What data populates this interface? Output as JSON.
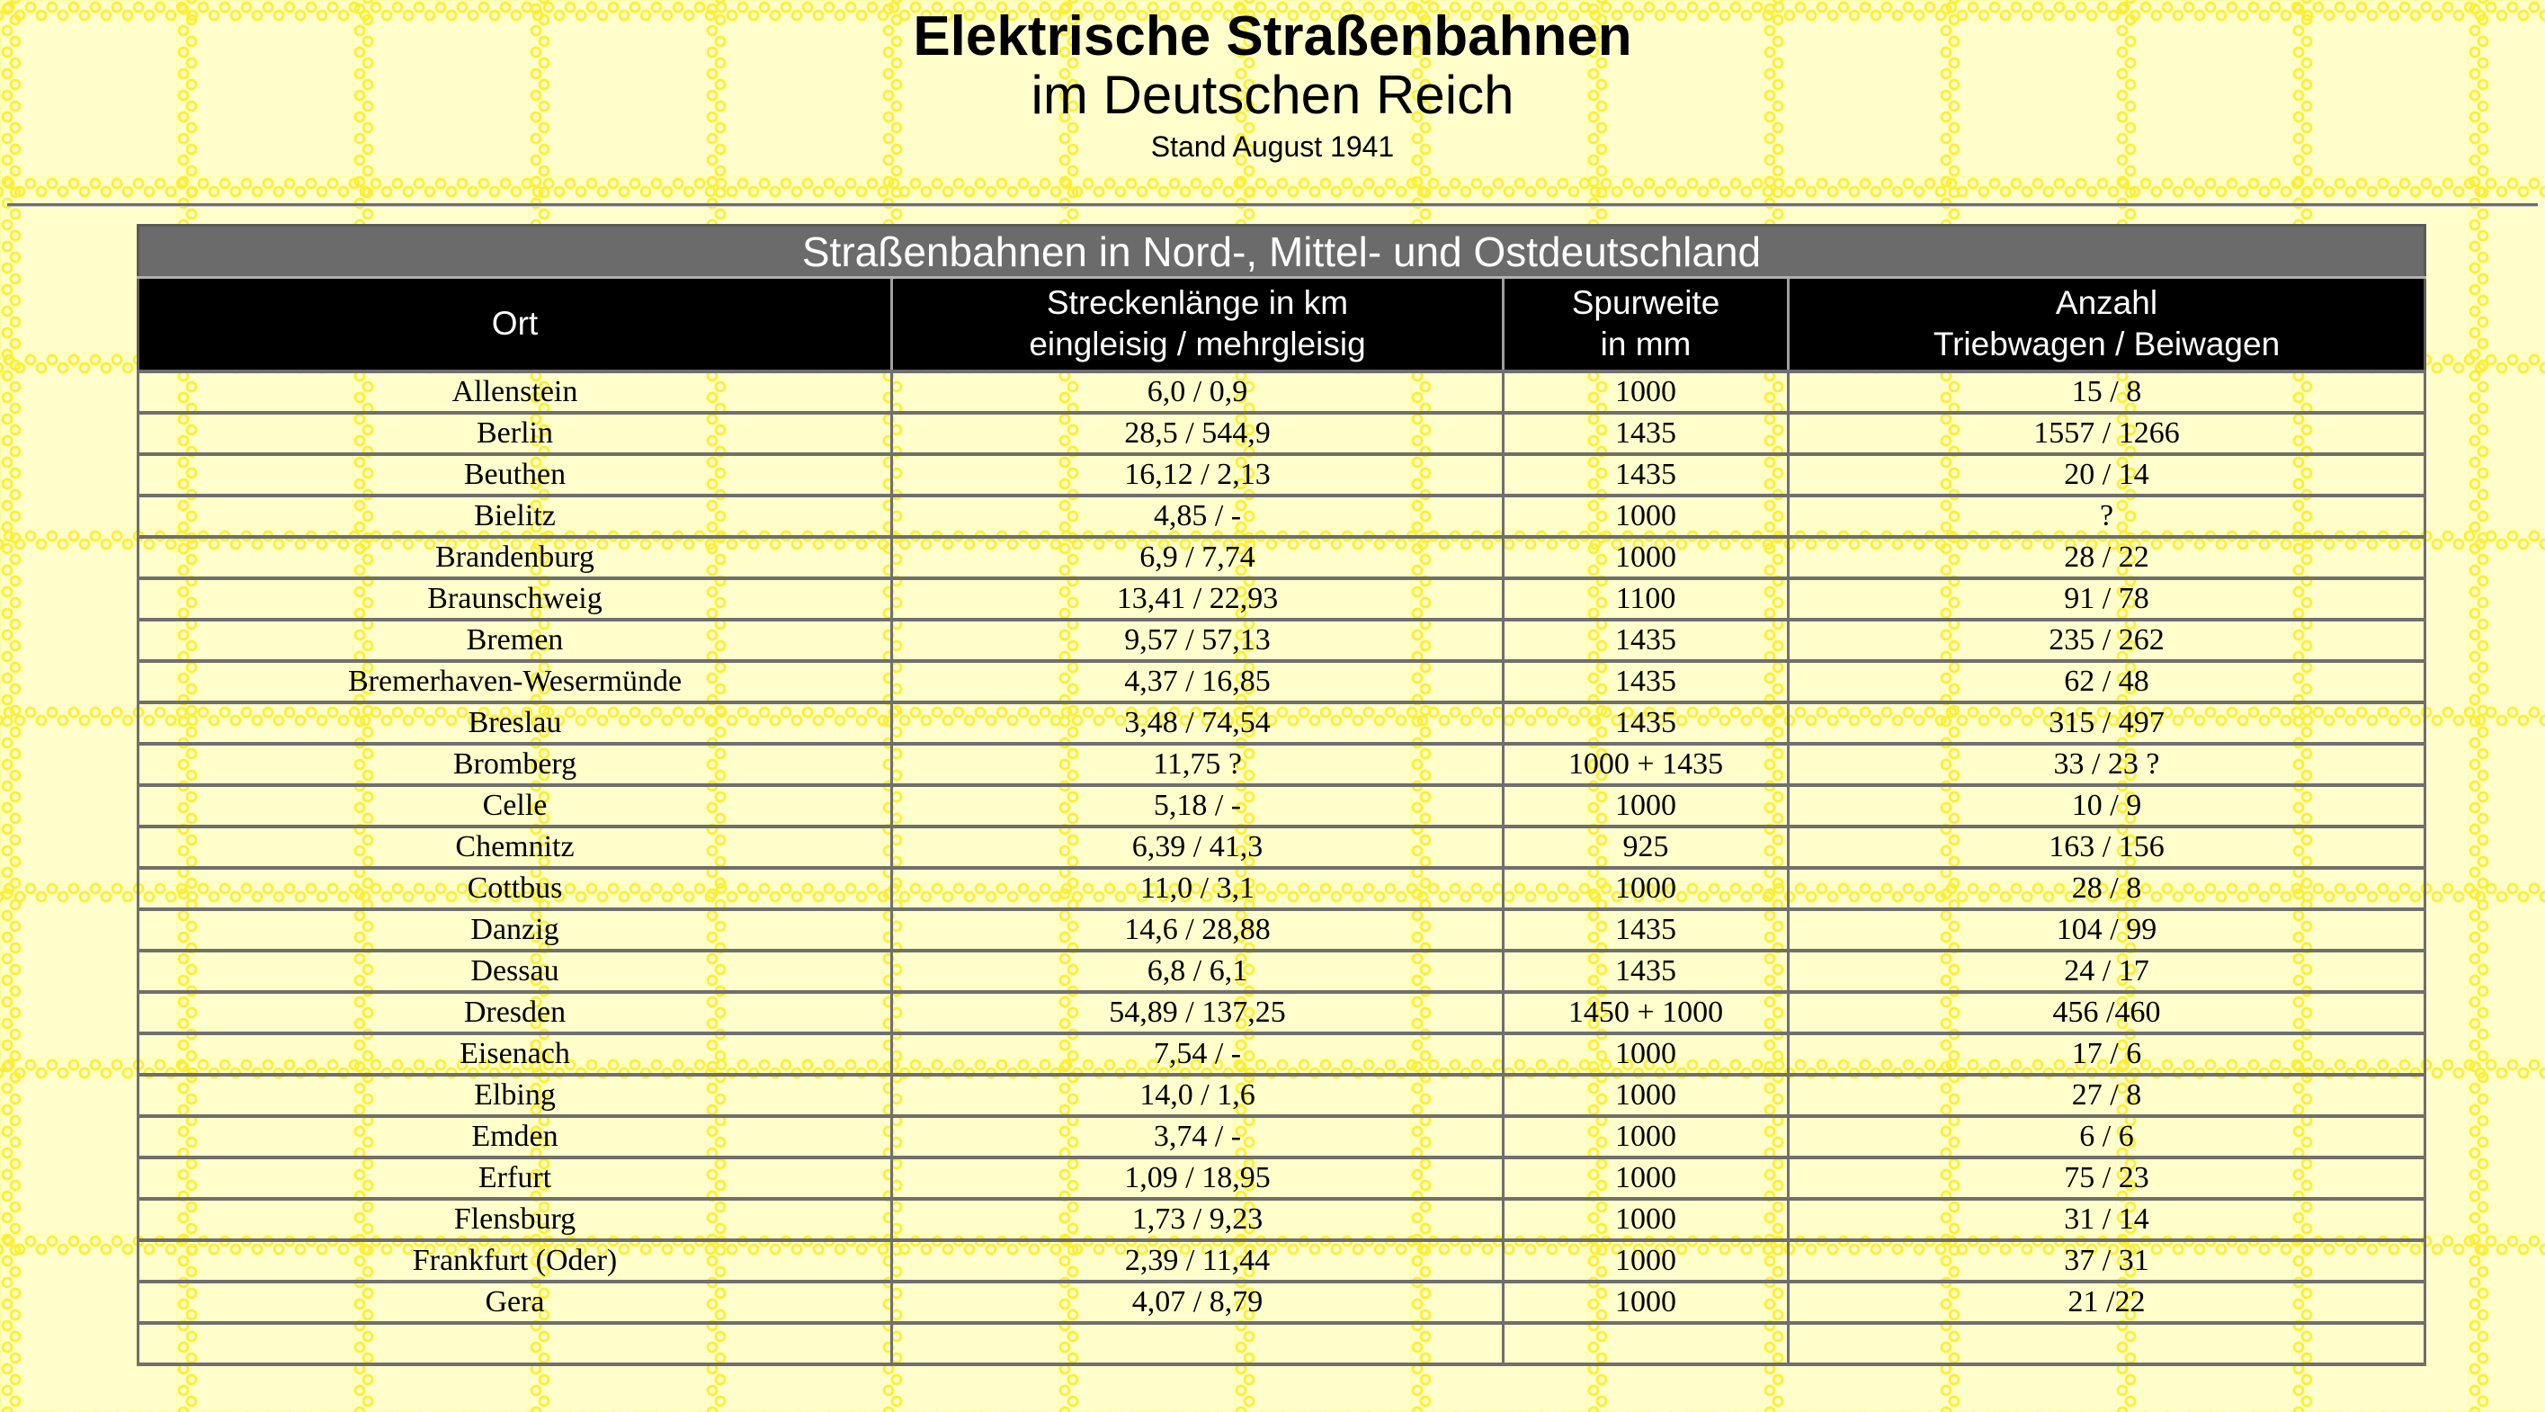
{
  "page": {
    "title_line1": "Elektrische Straßenbahnen",
    "title_line2": "im Deutschen Reich",
    "title_line3": "Stand August 1941"
  },
  "table": {
    "band_title": "Straßenbahnen in Nord-, Mittel- und Ostdeutschland",
    "columns": [
      {
        "line1": "Ort",
        "line2": ""
      },
      {
        "line1": "Streckenlänge in km",
        "line2": "eingleisig / mehrgleisig"
      },
      {
        "line1": "Spurweite",
        "line2": "in mm"
      },
      {
        "line1": "Anzahl",
        "line2": "Triebwagen / Beiwagen"
      }
    ],
    "rows": [
      [
        "Allenstein",
        "6,0 / 0,9",
        "1000",
        "15 / 8"
      ],
      [
        "Berlin",
        "28,5 / 544,9",
        "1435",
        "1557 / 1266"
      ],
      [
        "Beuthen",
        "16,12 / 2,13",
        "1435",
        "20 / 14"
      ],
      [
        "Bielitz",
        "4,85 / -",
        "1000",
        "?"
      ],
      [
        "Brandenburg",
        "6,9 / 7,74",
        "1000",
        "28 / 22"
      ],
      [
        "Braunschweig",
        "13,41 / 22,93",
        "1100",
        "91 / 78"
      ],
      [
        "Bremen",
        "9,57 / 57,13",
        "1435",
        "235 / 262"
      ],
      [
        "Bremerhaven-Wesermünde",
        "4,37 / 16,85",
        "1435",
        "62 / 48"
      ],
      [
        "Breslau",
        "3,48 / 74,54",
        "1435",
        "315 / 497"
      ],
      [
        "Bromberg",
        "11,75 ?",
        "1000 + 1435",
        "33 / 23 ?"
      ],
      [
        "Celle",
        "5,18 / -",
        "1000",
        "10 / 9"
      ],
      [
        "Chemnitz",
        "6,39 / 41,3",
        "925",
        "163 / 156"
      ],
      [
        "Cottbus",
        "11,0 / 3,1",
        "1000",
        "28 / 8"
      ],
      [
        "Danzig",
        "14,6 / 28,88",
        "1435",
        "104 / 99"
      ],
      [
        "Dessau",
        "6,8 / 6,1",
        "1435",
        "24 / 17"
      ],
      [
        "Dresden",
        "54,89 / 137,25",
        "1450 + 1000",
        "456 /460"
      ],
      [
        "Eisenach",
        "7,54 / -",
        "1000",
        "17 / 6"
      ],
      [
        "Elbing",
        "14,0 / 1,6",
        "1000",
        "27 / 8"
      ],
      [
        "Emden",
        "3,74 / -",
        "1000",
        "6 / 6"
      ],
      [
        "Erfurt",
        "1,09 / 18,95",
        "1000",
        "75 / 23"
      ],
      [
        "Flensburg",
        "1,73 / 9,23",
        "1000",
        "31 / 14"
      ],
      [
        "Frankfurt (Oder)",
        "2,39 / 11,44",
        "1000",
        "37 / 31"
      ],
      [
        "Gera",
        "4,07 / 8,79",
        "1000",
        "21 /22"
      ],
      [
        "",
        "",
        "",
        ""
      ]
    ]
  },
  "colors": {
    "page_bg": "#ffffcc",
    "pattern_ring": "#ffee35",
    "band_bg": "#6b6b6b",
    "header_bg": "#000000",
    "header_text": "#ffffff",
    "border_color": "#6f6f6f",
    "body_text": "#000000"
  }
}
